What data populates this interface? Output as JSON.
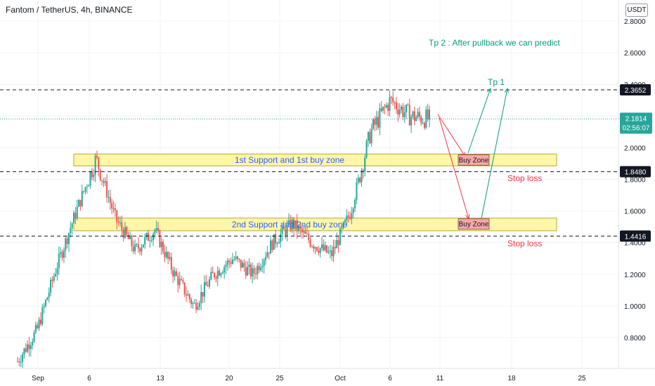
{
  "header": {
    "title": "Fantom / TetherUS, 4h, BINANCE",
    "currency_badge": "USDT"
  },
  "colors": {
    "up": "#26a69a",
    "down": "#ef5350",
    "zone_fill": "#fff59d",
    "zone_border": "#b8a93a",
    "zone_text": "#2962ff",
    "buy_fill": "#f8a7a7",
    "note_green": "#089981",
    "stop_red": "#f23645",
    "price_tag": "#26a69a"
  },
  "chart_data": {
    "type": "candlestick",
    "title": "Fantom / TetherUS, 4h, BINANCE",
    "x_ticks": [
      "Sep",
      "6",
      "13",
      "20",
      "25",
      "Oct",
      "6",
      "11",
      "18",
      "25"
    ],
    "y_ticks": [
      "0.8000",
      "1.0000",
      "1.2000",
      "1.4000",
      "1.6000",
      "1.8000",
      "2.0000",
      "2.2000",
      "2.4000",
      "2.6000",
      "2.8000"
    ],
    "ylim": [
      0.62,
      2.92
    ],
    "price_labels": [
      {
        "value": 2.3652,
        "text": "2.3652"
      },
      {
        "value": 1.848,
        "text": "1.8480"
      },
      {
        "value": 1.4416,
        "text": "1.4416"
      }
    ],
    "current_price": {
      "value": 2.1814,
      "text": "2.1814",
      "countdown": "02:56:07"
    },
    "zones": [
      {
        "label": "1st Support and 1st buy zone",
        "low": 1.885,
        "high": 1.96
      },
      {
        "label": "2nd Support and 2nd buy zone",
        "low": 1.475,
        "high": 1.555
      }
    ],
    "annotations": {
      "tp2": "Tp 2 : After pullback we can predict",
      "tp1": "Tp 1",
      "buy_zone_1": "Buy Zone",
      "buy_zone_2": "Buy Zone",
      "stop_loss_1": "Stop loss",
      "stop_loss_2": "Stop loss"
    },
    "key_closes": [
      0.65,
      0.85,
      1.25,
      1.6,
      1.93,
      1.55,
      1.35,
      1.48,
      1.2,
      1.0,
      1.2,
      1.3,
      1.2,
      1.4,
      1.52,
      1.4,
      1.32,
      1.6,
      2.1,
      2.3,
      2.2,
      2.18
    ]
  }
}
